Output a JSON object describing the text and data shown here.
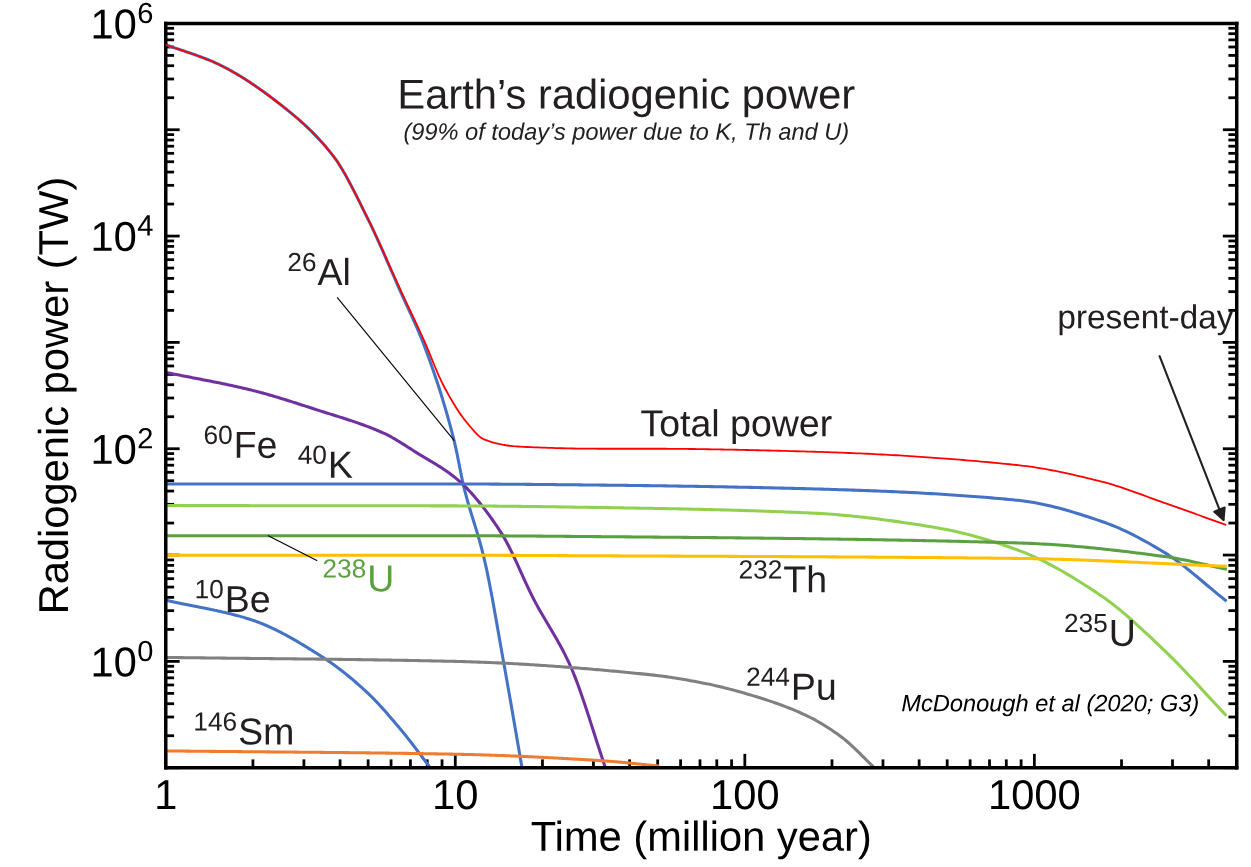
{
  "chart_data": {
    "type": "line",
    "title": "Earth’s radiogenic power",
    "subtitle": "(99% of today’s power due to K, Th and U)",
    "xlabel": "Time (million year)",
    "ylabel": "Radiogenic power (TW)",
    "log": "xy",
    "grid": false,
    "xlim": [
      1,
      5000
    ],
    "xticks": [
      1,
      10,
      100,
      1000
    ],
    "ylim": [
      0.1,
      1000000
    ],
    "yticks": [
      {
        "value": 0.1,
        "label": null
      },
      {
        "value": 1,
        "label": "10$^{0}$"
      },
      {
        "value": 10,
        "label": null
      },
      {
        "value": 100,
        "label": "10$^{2}$"
      },
      {
        "value": 1000,
        "label": null
      },
      {
        "value": 10000,
        "label": "10$^{4}$"
      },
      {
        "value": 100000,
        "label": null
      },
      {
        "value": 1000000,
        "label": "10$^{6}$"
      }
    ],
    "series": [
      {
        "name": "Total power",
        "color": "#ff0000",
        "x": [
          1,
          1.5,
          2.55,
          3.8,
          4.96,
          6.47,
          7.79,
          9.14,
          11,
          12.6,
          16.4,
          31.8,
          47,
          167,
          880,
          1710,
          2810,
          4568
        ],
        "values": [
          630000,
          420000,
          164000,
          56000,
          15000,
          3100,
          1050,
          385,
          174,
          122,
          105,
          100,
          100,
          94,
          70,
          49,
          31,
          19.3
        ]
      },
      {
        "name": "$^{26}$Al",
        "color": "#4472c4",
        "x": [
          1,
          1.5,
          2.55,
          3.8,
          4.96,
          6.47,
          7.79,
          9.9,
          10.7,
          12.6,
          14.7,
          17
        ],
        "values": [
          630000,
          420000,
          164000,
          56000,
          15000,
          3000,
          950,
          120,
          44,
          9.1,
          0.97,
          0.1
        ]
      },
      {
        "name": "$^{60}$Fe",
        "color": "#7030a0",
        "x": [
          1,
          1.96,
          3.33,
          5.66,
          7.39,
          10.2,
          14.4,
          18.7,
          25,
          33
        ],
        "values": [
          522,
          358,
          232,
          140,
          91,
          51,
          16.2,
          3.8,
          0.9,
          0.1
        ]
      },
      {
        "name": "$^{40}$K",
        "color": "#4472c4",
        "x": [
          1,
          10,
          31.8,
          167,
          880,
          1710,
          2810,
          4568
        ],
        "values": [
          46.6,
          46.6,
          45.5,
          42,
          32.7,
          20.7,
          10.6,
          3.76
        ]
      },
      {
        "name": "$^{235}$U",
        "color": "#92d050",
        "x": [
          1,
          10,
          31.8,
          167,
          453,
          880,
          1710,
          2810,
          4568
        ],
        "values": [
          29.2,
          29,
          28,
          24.9,
          18.2,
          11.1,
          4.1,
          1.27,
          0.316
        ]
      },
      {
        "name": "$^{238}$U",
        "color": "#5aa040",
        "x": [
          1,
          10,
          31.8,
          880,
          2810,
          4568
        ],
        "values": [
          15.2,
          15.2,
          14.9,
          13,
          9.7,
          7.4
        ]
      },
      {
        "name": "$^{232}$Th",
        "color": "#ffc000",
        "x": [
          1,
          10,
          31.8,
          880,
          4568
        ],
        "values": [
          9.96,
          9.96,
          9.84,
          9.3,
          7.85
        ]
      },
      {
        "name": "$^{10}$Be",
        "color": "#4472c4",
        "x": [
          1,
          1.96,
          3.51,
          4.96,
          6.47,
          8.2
        ],
        "values": [
          3.76,
          2.48,
          1.08,
          0.51,
          0.23,
          0.1
        ]
      },
      {
        "name": "$^{244}$Pu",
        "color": "#808080",
        "x": [
          1,
          10,
          47,
          73,
          120,
          167,
          218,
          280
        ],
        "values": [
          1.09,
          1.0,
          0.75,
          0.62,
          0.43,
          0.3,
          0.19,
          0.1
        ]
      },
      {
        "name": "$^{146}$Sm",
        "color": "#ed7d31",
        "x": [
          1,
          10,
          32.7,
          50
        ],
        "values": [
          0.144,
          0.134,
          0.116,
          0.104
        ]
      }
    ],
    "annotations": [
      {
        "text": "present-day",
        "x": 4568,
        "y": 19.3
      },
      "McDonough et al (2020; G3)"
    ]
  }
}
